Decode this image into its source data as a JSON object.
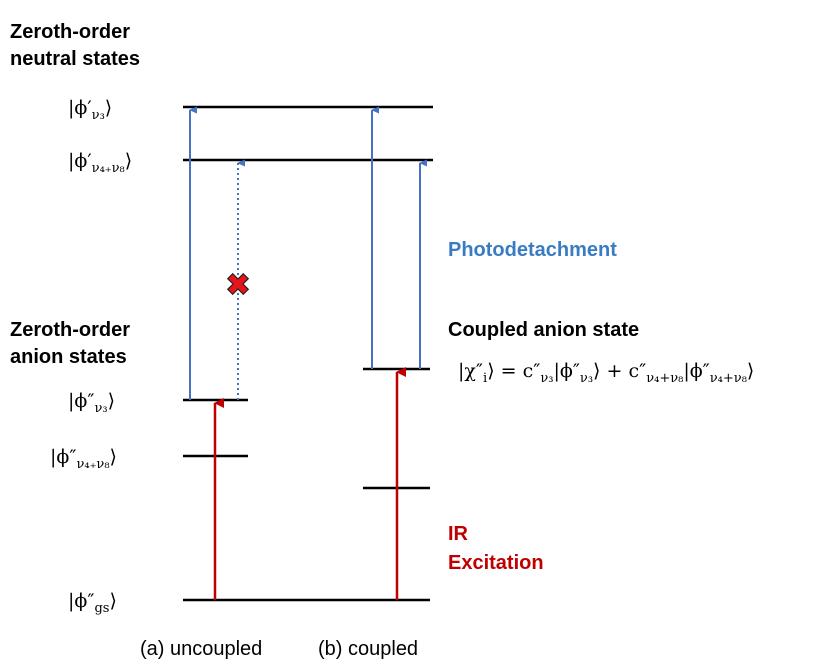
{
  "neutral_heading": [
    "Zeroth-order",
    "neutral states"
  ],
  "anion_heading": [
    "Zeroth-order",
    "anion states"
  ],
  "levels": {
    "neutral_v3": [
      "|ϕ′",
      "ν₃",
      "⟩"
    ],
    "neutral_v4v8": [
      "|ϕ′",
      "ν₄₊ν₈",
      "⟩"
    ],
    "anion_v3": [
      "|ϕ″",
      "ν₃",
      "⟩"
    ],
    "anion_v4v8": [
      "|ϕ″",
      "ν₄₊ν₈",
      "⟩"
    ],
    "anion_gs": [
      "|ϕ″",
      "gs",
      "⟩"
    ]
  },
  "photodetachment": "Photodetachment",
  "coupled_title": "Coupled anion state",
  "equation": [
    "|χ″",
    "i",
    "⟩ = c″",
    "ν₃",
    "|ϕ″",
    "ν₃",
    "⟩ + c″",
    "ν₄+ν₈",
    "|ϕ″",
    "ν₄+ν₈",
    "⟩"
  ],
  "ir_excitation": [
    "IR",
    "Excitation"
  ],
  "panel_labels": [
    "(a) uncoupled",
    "(b) coupled"
  ]
}
